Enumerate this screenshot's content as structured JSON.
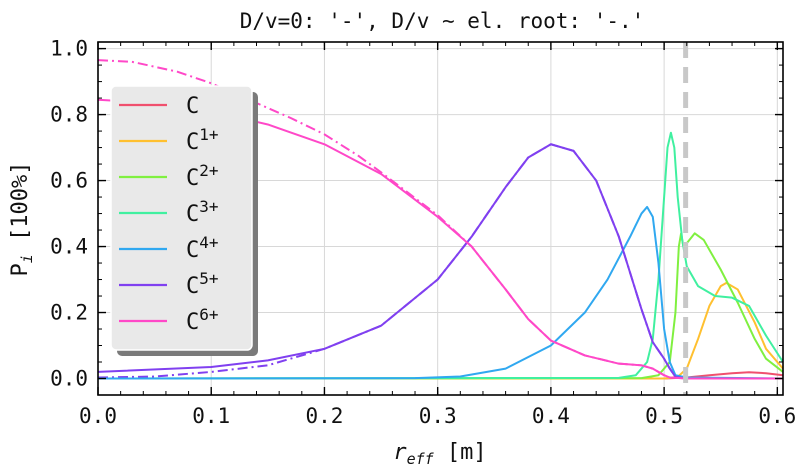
{
  "chart_data": {
    "type": "line",
    "title": "D/v=0: '-', D/v ∼  el. root: '-.'",
    "xlabel_main": "r",
    "xlabel_sub": "eff",
    "xlabel_unit": " [m]",
    "ylabel_main": "P",
    "ylabel_sub": "i",
    "ylabel_unit": " [100%]",
    "xlim": [
      0.0,
      0.605
    ],
    "ylim": [
      -0.05,
      1.02
    ],
    "xticks": [
      "0.0",
      "0.1",
      "0.2",
      "0.3",
      "0.4",
      "0.5",
      "0.6"
    ],
    "yticks": [
      "0.0",
      "0.2",
      "0.4",
      "0.6",
      "0.8",
      "1.0"
    ],
    "grid": true,
    "legend_position": "upper-left",
    "vline_x": 0.519,
    "series": [
      {
        "base": "C",
        "sup": "",
        "color": "#f0506e",
        "points": [
          [
            0,
            0
          ],
          [
            0.5,
            0
          ],
          [
            0.52,
            0.003
          ],
          [
            0.54,
            0.01
          ],
          [
            0.56,
            0.016
          ],
          [
            0.575,
            0.019
          ],
          [
            0.59,
            0.016
          ],
          [
            0.605,
            0.01
          ]
        ]
      },
      {
        "base": "C",
        "sup": "1+",
        "color": "#ffc030",
        "points": [
          [
            0,
            0
          ],
          [
            0.5,
            0
          ],
          [
            0.512,
            0.005
          ],
          [
            0.52,
            0.03
          ],
          [
            0.53,
            0.12
          ],
          [
            0.54,
            0.22
          ],
          [
            0.55,
            0.28
          ],
          [
            0.555,
            0.29
          ],
          [
            0.565,
            0.27
          ],
          [
            0.58,
            0.17
          ],
          [
            0.59,
            0.09
          ],
          [
            0.605,
            0.03
          ]
        ]
      },
      {
        "base": "C",
        "sup": "2+",
        "color": "#80f040",
        "points": [
          [
            0,
            0
          ],
          [
            0.48,
            0.001
          ],
          [
            0.495,
            0.01
          ],
          [
            0.505,
            0.05
          ],
          [
            0.51,
            0.2
          ],
          [
            0.513,
            0.4
          ],
          [
            0.515,
            0.44
          ],
          [
            0.517,
            0.4
          ],
          [
            0.52,
            0.41
          ],
          [
            0.527,
            0.44
          ],
          [
            0.535,
            0.42
          ],
          [
            0.55,
            0.33
          ],
          [
            0.565,
            0.23
          ],
          [
            0.58,
            0.12
          ],
          [
            0.59,
            0.06
          ],
          [
            0.605,
            0.02
          ]
        ]
      },
      {
        "base": "C",
        "sup": "3+",
        "color": "#40f0a0",
        "points": [
          [
            0,
            0
          ],
          [
            0.46,
            0.002
          ],
          [
            0.475,
            0.01
          ],
          [
            0.485,
            0.05
          ],
          [
            0.49,
            0.12
          ],
          [
            0.495,
            0.3
          ],
          [
            0.5,
            0.55
          ],
          [
            0.503,
            0.7
          ],
          [
            0.506,
            0.745
          ],
          [
            0.509,
            0.7
          ],
          [
            0.512,
            0.55
          ],
          [
            0.516,
            0.42
          ],
          [
            0.52,
            0.34
          ],
          [
            0.53,
            0.28
          ],
          [
            0.545,
            0.25
          ],
          [
            0.56,
            0.245
          ],
          [
            0.575,
            0.22
          ],
          [
            0.59,
            0.13
          ],
          [
            0.605,
            0.05
          ]
        ]
      },
      {
        "base": "C",
        "sup": "4+",
        "color": "#30a8f0",
        "points": [
          [
            0,
            0
          ],
          [
            0.28,
            0.001
          ],
          [
            0.32,
            0.006
          ],
          [
            0.36,
            0.03
          ],
          [
            0.4,
            0.1
          ],
          [
            0.43,
            0.2
          ],
          [
            0.45,
            0.3
          ],
          [
            0.47,
            0.43
          ],
          [
            0.48,
            0.5
          ],
          [
            0.485,
            0.52
          ],
          [
            0.49,
            0.49
          ],
          [
            0.495,
            0.35
          ],
          [
            0.5,
            0.15
          ],
          [
            0.505,
            0.05
          ],
          [
            0.51,
            0.01
          ],
          [
            0.52,
            0.003
          ],
          [
            0.605,
            0
          ]
        ]
      },
      {
        "base": "C",
        "sup": "5+",
        "color": "#8040f0",
        "points": [
          [
            0,
            0.02
          ],
          [
            0.1,
            0.035
          ],
          [
            0.15,
            0.055
          ],
          [
            0.2,
            0.09
          ],
          [
            0.25,
            0.16
          ],
          [
            0.3,
            0.3
          ],
          [
            0.33,
            0.43
          ],
          [
            0.36,
            0.58
          ],
          [
            0.38,
            0.67
          ],
          [
            0.4,
            0.71
          ],
          [
            0.42,
            0.69
          ],
          [
            0.44,
            0.6
          ],
          [
            0.46,
            0.43
          ],
          [
            0.48,
            0.21
          ],
          [
            0.49,
            0.11
          ],
          [
            0.5,
            0.06
          ],
          [
            0.505,
            0.03
          ],
          [
            0.51,
            0.005
          ],
          [
            0.52,
            0
          ],
          [
            0.605,
            0
          ]
        ]
      },
      {
        "base": "C",
        "sup": "6+",
        "color": "#ff48c8",
        "points": [
          [
            0,
            0.845
          ],
          [
            0.05,
            0.835
          ],
          [
            0.1,
            0.81
          ],
          [
            0.15,
            0.77
          ],
          [
            0.2,
            0.71
          ],
          [
            0.25,
            0.62
          ],
          [
            0.3,
            0.49
          ],
          [
            0.33,
            0.4
          ],
          [
            0.36,
            0.27
          ],
          [
            0.38,
            0.18
          ],
          [
            0.4,
            0.115
          ],
          [
            0.43,
            0.07
          ],
          [
            0.46,
            0.045
          ],
          [
            0.48,
            0.04
          ],
          [
            0.49,
            0.03
          ],
          [
            0.5,
            0.01
          ],
          [
            0.505,
            0.003
          ],
          [
            0.52,
            0
          ],
          [
            0.605,
            0
          ]
        ]
      }
    ],
    "dashdot_series": [
      {
        "color": "#ff48c8",
        "points": [
          [
            0,
            0.965
          ],
          [
            0.03,
            0.96
          ],
          [
            0.07,
            0.93
          ],
          [
            0.1,
            0.895
          ],
          [
            0.13,
            0.85
          ],
          [
            0.17,
            0.79
          ],
          [
            0.2,
            0.74
          ],
          [
            0.23,
            0.675
          ],
          [
            0.25,
            0.625
          ],
          [
            0.3,
            0.495
          ],
          [
            0.33,
            0.4
          ],
          [
            0.36,
            0.27
          ],
          [
            0.38,
            0.18
          ],
          [
            0.4,
            0.115
          ],
          [
            0.43,
            0.07
          ],
          [
            0.46,
            0.045
          ],
          [
            0.48,
            0.04
          ],
          [
            0.49,
            0.03
          ],
          [
            0.5,
            0.01
          ],
          [
            0.505,
            0.003
          ],
          [
            0.52,
            0
          ],
          [
            0.605,
            0
          ]
        ]
      },
      {
        "color": "#8040f0",
        "points": [
          [
            0,
            0.003
          ],
          [
            0.05,
            0.006
          ],
          [
            0.1,
            0.02
          ],
          [
            0.15,
            0.04
          ],
          [
            0.2,
            0.09
          ],
          [
            0.25,
            0.16
          ],
          [
            0.3,
            0.3
          ],
          [
            0.33,
            0.43
          ],
          [
            0.36,
            0.58
          ],
          [
            0.38,
            0.67
          ],
          [
            0.4,
            0.71
          ],
          [
            0.42,
            0.69
          ],
          [
            0.44,
            0.6
          ],
          [
            0.46,
            0.43
          ],
          [
            0.48,
            0.21
          ],
          [
            0.49,
            0.11
          ],
          [
            0.5,
            0.06
          ],
          [
            0.505,
            0.03
          ],
          [
            0.51,
            0.005
          ],
          [
            0.52,
            0
          ],
          [
            0.605,
            0
          ]
        ]
      }
    ]
  }
}
